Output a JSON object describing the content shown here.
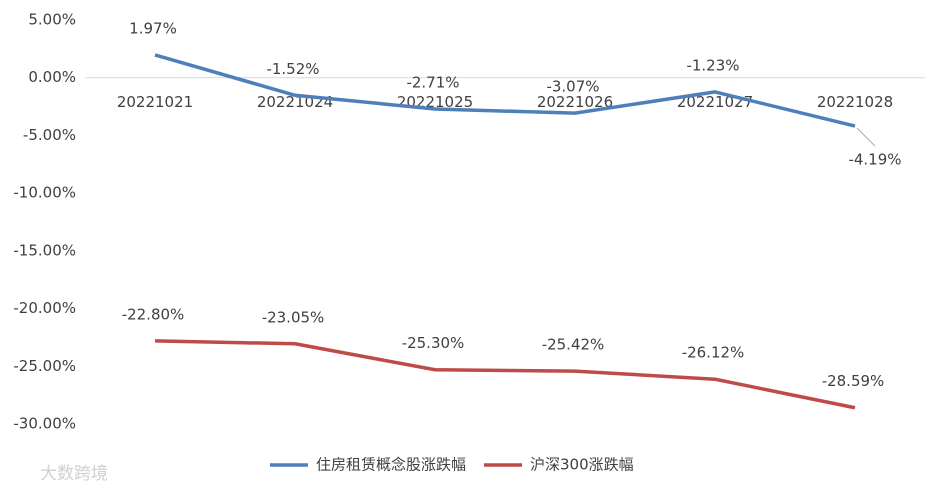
{
  "chart_data": {
    "type": "line",
    "categories": [
      "20221021",
      "20221024",
      "20221025",
      "20221026",
      "20221027",
      "20221028"
    ],
    "series": [
      {
        "name": "住房租赁概念股涨跌幅",
        "color": "#4f7fba",
        "values": [
          1.97,
          -1.52,
          -2.71,
          -3.07,
          -1.23,
          -4.19
        ],
        "value_labels": [
          "1.97%",
          "-1.52%",
          "-2.71%",
          "-3.07%",
          "-1.23%",
          "-4.19%"
        ]
      },
      {
        "name": "沪深300涨跌幅",
        "color": "#be4b48",
        "values": [
          -22.8,
          -23.05,
          -25.3,
          -25.42,
          -26.12,
          -28.59
        ],
        "value_labels": [
          "-22.80%",
          "-23.05%",
          "-25.30%",
          "-25.42%",
          "-26.12%",
          "-28.59%"
        ]
      }
    ],
    "ylim": [
      -30,
      5
    ],
    "yticks": [
      {
        "value": 5,
        "label": "5.00%"
      },
      {
        "value": 0,
        "label": "0.00%"
      },
      {
        "value": -5,
        "label": "-5.00%"
      },
      {
        "value": -10,
        "label": "-10.00%"
      },
      {
        "value": -15,
        "label": "-15.00%"
      },
      {
        "value": -20,
        "label": "-20.00%"
      },
      {
        "value": -25,
        "label": "-25.00%"
      },
      {
        "value": -30,
        "label": "-30.00%"
      }
    ],
    "watermark": "大数跨境"
  }
}
